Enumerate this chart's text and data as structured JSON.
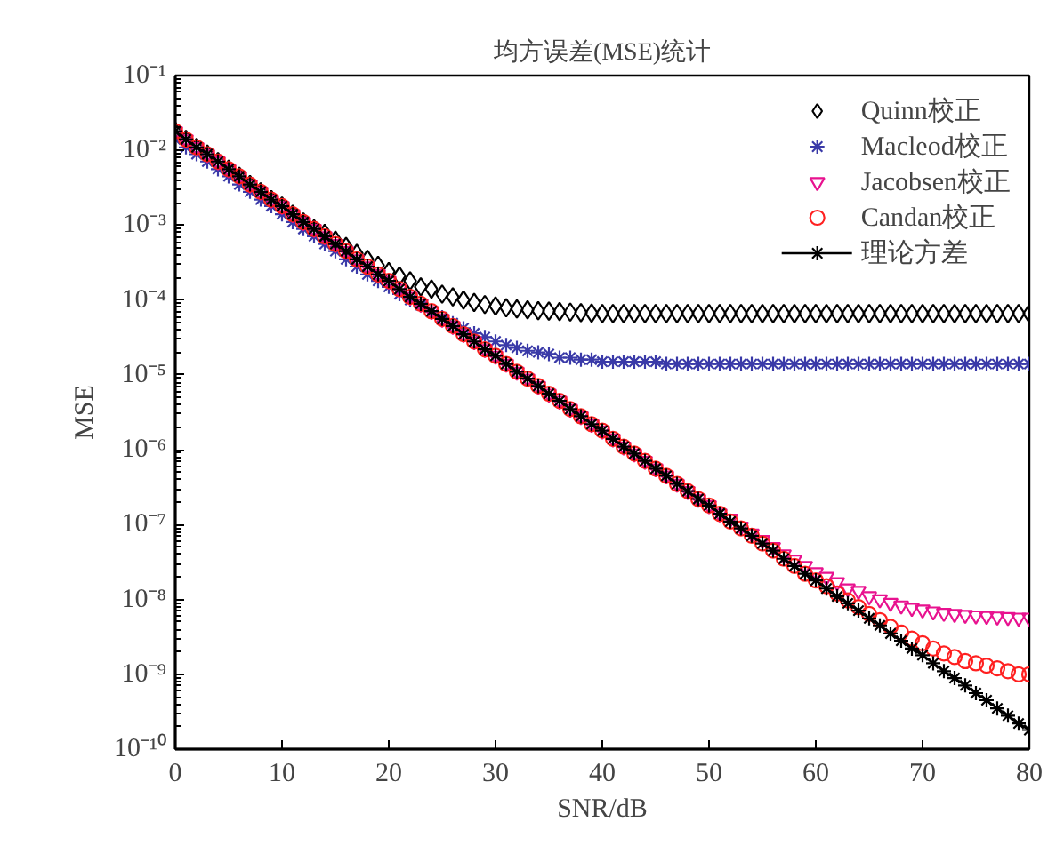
{
  "chart_data": {
    "type": "scatter",
    "title": "均方误差(MSE)统计",
    "xlabel": "SNR/dB",
    "ylabel": "MSE",
    "log": "y",
    "grid": false,
    "legend": "top right",
    "xlim": [
      0,
      80
    ],
    "xticks": [
      0,
      10,
      20,
      30,
      40,
      50,
      60,
      70,
      80
    ],
    "ylim": [
      1e-10,
      0.1
    ],
    "yticks": [
      {
        "value": 1e-10,
        "label": "10⁻¹⁰"
      },
      {
        "value": 1e-09,
        "label": "10⁻⁹"
      },
      {
        "value": 1e-08,
        "label": "10⁻⁸"
      },
      {
        "value": 1e-07,
        "label": "10⁻⁷"
      },
      {
        "value": 1e-06,
        "label": "10⁻⁶"
      },
      {
        "value": 1e-05,
        "label": "10⁻⁵"
      },
      {
        "value": 0.0001,
        "label": "10⁻⁴"
      },
      {
        "value": 0.001,
        "label": "10⁻³"
      },
      {
        "value": 0.01,
        "label": "10⁻²"
      },
      {
        "value": 0.1,
        "label": "10⁻¹"
      }
    ],
    "x": [
      0,
      1,
      2,
      3,
      4,
      5,
      6,
      7,
      8,
      9,
      10,
      11,
      12,
      13,
      14,
      15,
      16,
      17,
      18,
      19,
      20,
      21,
      22,
      23,
      24,
      25,
      26,
      27,
      28,
      29,
      30,
      31,
      32,
      33,
      34,
      35,
      36,
      37,
      38,
      39,
      40,
      41,
      42,
      43,
      44,
      45,
      46,
      47,
      48,
      49,
      50,
      51,
      52,
      53,
      54,
      55,
      56,
      57,
      58,
      59,
      60,
      61,
      62,
      63,
      64,
      65,
      66,
      67,
      68,
      69,
      70,
      71,
      72,
      73,
      74,
      75,
      76,
      77,
      78,
      79,
      80
    ],
    "series": [
      {
        "name": "Quinn校正",
        "marker": "diamond",
        "color": "#000000",
        "values": [
          0.018,
          0.014,
          0.011,
          0.0089,
          0.0071,
          0.0056,
          0.0045,
          0.0035,
          0.0028,
          0.0022,
          0.0018,
          0.0014,
          0.0011,
          0.00089,
          0.00078,
          0.00063,
          0.00052,
          0.00042,
          0.00035,
          0.00029,
          0.00024,
          0.00021,
          0.00018,
          0.00015,
          0.00014,
          0.00012,
          0.00011,
          0.0001,
          9.3e-05,
          8.7e-05,
          8.3e-05,
          7.9e-05,
          7.6e-05,
          7.4e-05,
          7.2e-05,
          7.1e-05,
          7e-05,
          6.9e-05,
          6.8e-05,
          6.7e-05,
          6.6e-05,
          6.6e-05,
          6.6e-05,
          6.6e-05,
          6.6e-05,
          6.6e-05,
          6.6e-05,
          6.6e-05,
          6.6e-05,
          6.6e-05,
          6.6e-05,
          6.6e-05,
          6.6e-05,
          6.6e-05,
          6.6e-05,
          6.6e-05,
          6.6e-05,
          6.6e-05,
          6.6e-05,
          6.6e-05,
          6.6e-05,
          6.6e-05,
          6.6e-05,
          6.6e-05,
          6.6e-05,
          6.6e-05,
          6.6e-05,
          6.6e-05,
          6.6e-05,
          6.6e-05,
          6.6e-05,
          6.6e-05,
          6.6e-05,
          6.6e-05,
          6.6e-05,
          6.6e-05,
          6.6e-05,
          6.6e-05,
          6.6e-05,
          6.6e-05,
          6.6e-05
        ]
      },
      {
        "name": "Macleod校正",
        "marker": "cross",
        "color": "#3a3aa8",
        "values": [
          0.014,
          0.011,
          0.0089,
          0.0071,
          0.0056,
          0.0045,
          0.0035,
          0.0028,
          0.0022,
          0.0018,
          0.0014,
          0.0011,
          0.00089,
          0.00071,
          0.00056,
          0.00045,
          0.00035,
          0.00028,
          0.00022,
          0.00018,
          0.00015,
          0.00012,
          0.0001,
          8.5e-05,
          7e-05,
          5.9e-05,
          4.9e-05,
          4.2e-05,
          3.6e-05,
          3.2e-05,
          2.8e-05,
          2.5e-05,
          2.3e-05,
          2.1e-05,
          2e-05,
          1.9e-05,
          1.7e-05,
          1.7e-05,
          1.6e-05,
          1.6e-05,
          1.5e-05,
          1.5e-05,
          1.5e-05,
          1.5e-05,
          1.5e-05,
          1.5e-05,
          1.4e-05,
          1.4e-05,
          1.4e-05,
          1.4e-05,
          1.4e-05,
          1.4e-05,
          1.4e-05,
          1.4e-05,
          1.4e-05,
          1.4e-05,
          1.4e-05,
          1.4e-05,
          1.4e-05,
          1.4e-05,
          1.4e-05,
          1.4e-05,
          1.4e-05,
          1.4e-05,
          1.4e-05,
          1.4e-05,
          1.4e-05,
          1.4e-05,
          1.4e-05,
          1.4e-05,
          1.4e-05,
          1.4e-05,
          1.4e-05,
          1.4e-05,
          1.4e-05,
          1.4e-05,
          1.4e-05,
          1.4e-05,
          1.4e-05,
          1.4e-05,
          1.4e-05
        ]
      },
      {
        "name": "Jacobsen校正",
        "marker": "triangle",
        "color": "#e8128f",
        "values": [
          0.018,
          0.014,
          0.011,
          0.0089,
          0.0071,
          0.0056,
          0.0045,
          0.0035,
          0.0028,
          0.0022,
          0.0018,
          0.0014,
          0.0011,
          0.00089,
          0.00071,
          0.00056,
          0.00045,
          0.00035,
          0.00028,
          0.00022,
          0.00018,
          0.00014,
          0.00011,
          8.9e-05,
          7.1e-05,
          5.6e-05,
          4.5e-05,
          3.5e-05,
          2.8e-05,
          2.2e-05,
          1.8e-05,
          1.4e-05,
          1.1e-05,
          8.9e-06,
          7.1e-06,
          5.6e-06,
          4.5e-06,
          3.5e-06,
          2.8e-06,
          2.2e-06,
          1.8e-06,
          1.4e-06,
          1.1e-06,
          8.9e-07,
          7.1e-07,
          5.6e-07,
          4.5e-07,
          3.5e-07,
          2.8e-07,
          2.2e-07,
          1.8e-07,
          1.4e-07,
          1.2e-07,
          9.4e-08,
          7.6e-08,
          6.2e-08,
          5e-08,
          4e-08,
          3.4e-08,
          2.8e-08,
          2.3e-08,
          2e-08,
          1.7e-08,
          1.4e-08,
          1.3e-08,
          1.1e-08,
          1e-08,
          9e-09,
          8.3e-09,
          7.7e-09,
          7.3e-09,
          6.9e-09,
          6.6e-09,
          6.4e-09,
          6.2e-09,
          6.1e-09,
          6e-09,
          5.9e-09,
          5.8e-09,
          5.7e-09,
          5.7e-09
        ]
      },
      {
        "name": "Candan校正",
        "marker": "circle",
        "color": "#ff2020",
        "values": [
          0.018,
          0.014,
          0.011,
          0.0089,
          0.0071,
          0.0056,
          0.0045,
          0.0035,
          0.0028,
          0.0022,
          0.0018,
          0.0014,
          0.0011,
          0.00089,
          0.00071,
          0.00056,
          0.00045,
          0.00035,
          0.00028,
          0.00022,
          0.00018,
          0.00014,
          0.00011,
          8.9e-05,
          7.1e-05,
          5.6e-05,
          4.5e-05,
          3.5e-05,
          2.8e-05,
          2.2e-05,
          1.8e-05,
          1.4e-05,
          1.1e-05,
          8.9e-06,
          7.1e-06,
          5.6e-06,
          4.5e-06,
          3.5e-06,
          2.8e-06,
          2.2e-06,
          1.8e-06,
          1.4e-06,
          1.1e-06,
          8.9e-07,
          7.1e-07,
          5.6e-07,
          4.5e-07,
          3.5e-07,
          2.8e-07,
          2.2e-07,
          1.8e-07,
          1.4e-07,
          1.1e-07,
          8.9e-08,
          7.1e-08,
          5.6e-08,
          4.5e-08,
          3.5e-08,
          2.8e-08,
          2.2e-08,
          1.8e-08,
          1.5e-08,
          1.2e-08,
          9.7e-09,
          7.9e-09,
          6.4e-09,
          5.3e-09,
          4.3e-09,
          3.6e-09,
          3e-09,
          2.6e-09,
          2.2e-09,
          1.9e-09,
          1.7e-09,
          1.5e-09,
          1.4e-09,
          1.3e-09,
          1.2e-09,
          1.1e-09,
          1e-09,
          1e-09
        ]
      },
      {
        "name": "理论方差",
        "type": "line",
        "marker": "cross",
        "line_style": "solid",
        "color": "#000000",
        "values": [
          0.018,
          0.014,
          0.011,
          0.0089,
          0.0071,
          0.0056,
          0.0045,
          0.0035,
          0.0028,
          0.0022,
          0.0018,
          0.0014,
          0.0011,
          0.00089,
          0.00071,
          0.00056,
          0.00045,
          0.00035,
          0.00028,
          0.00022,
          0.00018,
          0.00014,
          0.00011,
          8.9e-05,
          7.1e-05,
          5.6e-05,
          4.5e-05,
          3.5e-05,
          2.8e-05,
          2.2e-05,
          1.8e-05,
          1.4e-05,
          1.1e-05,
          8.9e-06,
          7.1e-06,
          5.6e-06,
          4.5e-06,
          3.5e-06,
          2.8e-06,
          2.2e-06,
          1.8e-06,
          1.4e-06,
          1.1e-06,
          8.9e-07,
          7.1e-07,
          5.6e-07,
          4.5e-07,
          3.5e-07,
          2.8e-07,
          2.2e-07,
          1.8e-07,
          1.4e-07,
          1.1e-07,
          8.9e-08,
          7.1e-08,
          5.6e-08,
          4.5e-08,
          3.5e-08,
          2.8e-08,
          2.2e-08,
          1.8e-08,
          1.4e-08,
          1.1e-08,
          8.9e-09,
          7.1e-09,
          5.6e-09,
          4.5e-09,
          3.5e-09,
          2.8e-09,
          2.2e-09,
          1.8e-09,
          1.4e-09,
          1.1e-09,
          8.9e-10,
          7.1e-10,
          5.6e-10,
          4.5e-10,
          3.5e-10,
          2.8e-10,
          2.2e-10,
          1.8e-10
        ]
      }
    ]
  }
}
